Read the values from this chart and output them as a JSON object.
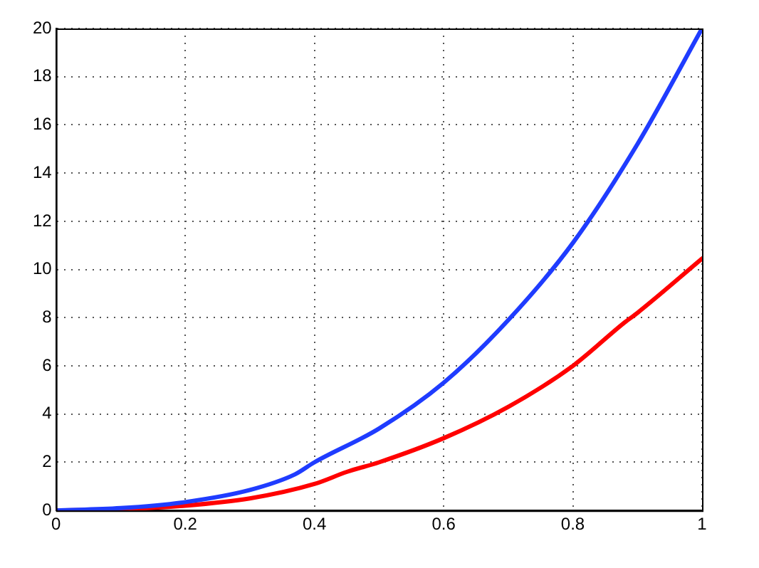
{
  "chart_data": {
    "type": "line",
    "series": [
      {
        "color": "#1f3cff",
        "x": [
          0,
          0.1,
          0.2,
          0.3,
          0.37,
          0.4,
          0.5,
          0.6,
          0.7,
          0.8,
          0.9,
          1.0
        ],
        "values": [
          0,
          0.1,
          0.35,
          0.85,
          1.5,
          2.0,
          3.4,
          5.3,
          7.9,
          11.1,
          15.2,
          20
        ]
      },
      {
        "color": "#ff0000",
        "x": [
          0,
          0.1,
          0.2,
          0.3,
          0.4,
          0.45,
          0.5,
          0.6,
          0.7,
          0.8,
          0.88,
          0.9,
          1.0
        ],
        "values": [
          0,
          0.05,
          0.2,
          0.5,
          1.1,
          1.6,
          2.0,
          3.0,
          4.3,
          6.0,
          7.8,
          8.2,
          10.45
        ]
      }
    ],
    "xlim": [
      0,
      1
    ],
    "xticks": [
      0,
      0.2,
      0.4,
      0.6,
      0.8,
      1
    ],
    "ylim": [
      0,
      20
    ],
    "yticks": [
      0,
      2,
      4,
      6,
      8,
      10,
      12,
      14,
      16,
      18,
      20
    ],
    "grid": true,
    "line_style": "solid",
    "marker": "none",
    "legend": false
  }
}
